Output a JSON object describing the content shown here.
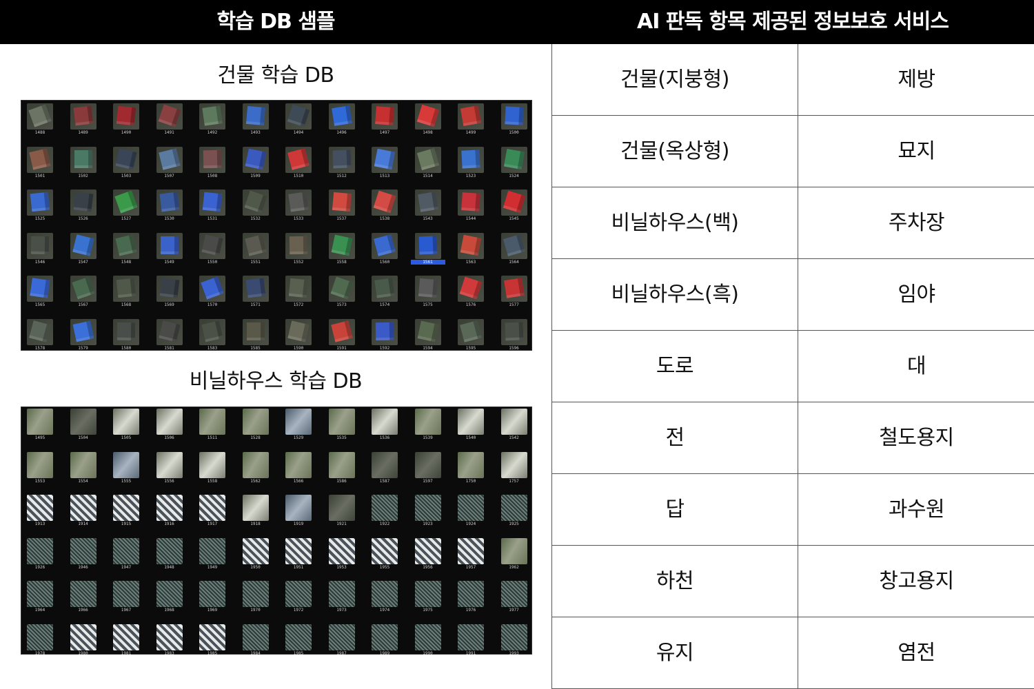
{
  "header": {
    "left_title": "학습 DB 샘플",
    "right_title": "AI 판독 항목 제공된 정보보호 서비스"
  },
  "building_section": {
    "title": "건물 학습 DB",
    "labels": [
      [
        "1488",
        "1489",
        "1490",
        "1491",
        "1492",
        "1493",
        "1494",
        "1496",
        "1497",
        "1498",
        "1499",
        "1500"
      ],
      [
        "1501",
        "1502",
        "1503",
        "1507",
        "1508",
        "1509",
        "1510",
        "1512",
        "1513",
        "1514",
        "1523",
        "1524"
      ],
      [
        "1525",
        "1526",
        "1527",
        "1530",
        "1531",
        "1532",
        "1533",
        "1537",
        "1538",
        "1543",
        "1544",
        "1545"
      ],
      [
        "1546",
        "1547",
        "1548",
        "1549",
        "1550",
        "1551",
        "1552",
        "1558",
        "1560",
        "1561",
        "1563",
        "1564"
      ],
      [
        "1565",
        "1567",
        "1568",
        "1569",
        "1570",
        "1571",
        "1572",
        "1573",
        "1574",
        "1575",
        "1576",
        "1577"
      ],
      [
        "1578",
        "1579",
        "1580",
        "1581",
        "1583",
        "1585",
        "1590",
        "1591",
        "1592",
        "1594",
        "1595",
        "1596"
      ]
    ],
    "colors": [
      [
        "#6b7465",
        "#8a3a3a",
        "#a02a30",
        "#8a4040",
        "#5e7a5e",
        "#3a6cc8",
        "#3e4a55",
        "#2f6ad8",
        "#c73030",
        "#d83a3a",
        "#c43a34",
        "#3163d0"
      ],
      [
        "#8a5a48",
        "#4a7a66",
        "#3a4658",
        "#5a7aa0",
        "#7a5050",
        "#3a5ac0",
        "#d03838",
        "#445060",
        "#4a7ad8",
        "#6a7a60",
        "#3a72d0",
        "#3a8a58"
      ],
      [
        "#3a6ad0",
        "#3a4048",
        "#3a9a4a",
        "#3a5aa0",
        "#3a62d0",
        "#50584a",
        "#5a5a58",
        "#d04a40",
        "#d44a44",
        "#505a64",
        "#c8323a",
        "#d02e30"
      ],
      [
        "#4a5048",
        "#3a72d0",
        "#4a6a50",
        "#3a62c8",
        "#4a4a48",
        "#5a5a50",
        "#6a6050",
        "#3a9050",
        "#3a6ad0",
        "#2a5ad0",
        "#c84a3a",
        "#4a5a6a"
      ],
      [
        "#3a6ad8",
        "#4a6a50",
        "#50584a",
        "#3a4048",
        "#3a62d0",
        "#3a4a70",
        "#5a6050",
        "#506a50",
        "#4a5a4a",
        "#5a5a5a",
        "#d03a3a",
        "#c83434"
      ],
      [
        "#5a6458",
        "#3a70d8",
        "#4a4e4a",
        "#4a4a48",
        "#4a5248",
        "#5a5848",
        "#6a6a5a",
        "#c8443a",
        "#3a5ac8",
        "#5a6a50",
        "#5a6858",
        "#4a5048"
      ]
    ],
    "selected_label": "1561"
  },
  "greenhouse_section": {
    "title": "비닐하우스 학습 DB",
    "labels": [
      [
        "1495",
        "1504",
        "1505",
        "1506",
        "1511",
        "1528",
        "1529",
        "1535",
        "1536",
        "1539",
        "1540",
        "1542"
      ],
      [
        "1553",
        "1554",
        "1555",
        "1556",
        "1558",
        "1562",
        "1566",
        "1586",
        "1587",
        "1597",
        "1750",
        "1757"
      ],
      [
        "1913",
        "1914",
        "1915",
        "1916",
        "1917",
        "1918",
        "1919",
        "1921",
        "1922",
        "1923",
        "1924",
        "1925"
      ],
      [
        "1926",
        "1946",
        "1947",
        "1948",
        "1949",
        "1950",
        "1951",
        "1953",
        "1955",
        "1956",
        "1957",
        "1962"
      ],
      [
        "1964",
        "1966",
        "1967",
        "1968",
        "1969",
        "1970",
        "1972",
        "1973",
        "1974",
        "1975",
        "1976",
        "1977"
      ],
      [
        "1978",
        "1980",
        "1981",
        "1983",
        "1985",
        "1984",
        "1985",
        "1987",
        "1989",
        "1990",
        "1991",
        "1993"
      ]
    ],
    "styles": [
      [
        "g",
        "d",
        "w",
        "w",
        "g",
        "g",
        "b",
        "g",
        "w",
        "g",
        "w",
        "w"
      ],
      [
        "g",
        "g",
        "b",
        "w",
        "w",
        "g",
        "g",
        "g",
        "d",
        "d",
        "g",
        "w"
      ],
      [
        "s",
        "s",
        "s",
        "s",
        "s",
        "w",
        "b",
        "d",
        "n",
        "n",
        "n",
        "n"
      ],
      [
        "n",
        "n",
        "n",
        "n",
        "n",
        "s",
        "s",
        "s",
        "s",
        "s",
        "s",
        "g"
      ],
      [
        "n",
        "n",
        "n",
        "n",
        "n",
        "n",
        "n",
        "n",
        "n",
        "n",
        "n",
        "n"
      ],
      [
        "n",
        "s",
        "s",
        "s",
        "s",
        "n",
        "n",
        "n",
        "n",
        "n",
        "n",
        "n"
      ]
    ]
  },
  "table": {
    "rows": [
      [
        "건물(지붕형)",
        "제방"
      ],
      [
        "건물(옥상형)",
        "묘지"
      ],
      [
        "비닐하우스(백)",
        "주차장"
      ],
      [
        "비닐하우스(흑)",
        "임야"
      ],
      [
        "도로",
        "대"
      ],
      [
        "전",
        "철도용지"
      ],
      [
        "답",
        "과수원"
      ],
      [
        "하천",
        "창고용지"
      ],
      [
        "유지",
        "염전"
      ]
    ]
  }
}
